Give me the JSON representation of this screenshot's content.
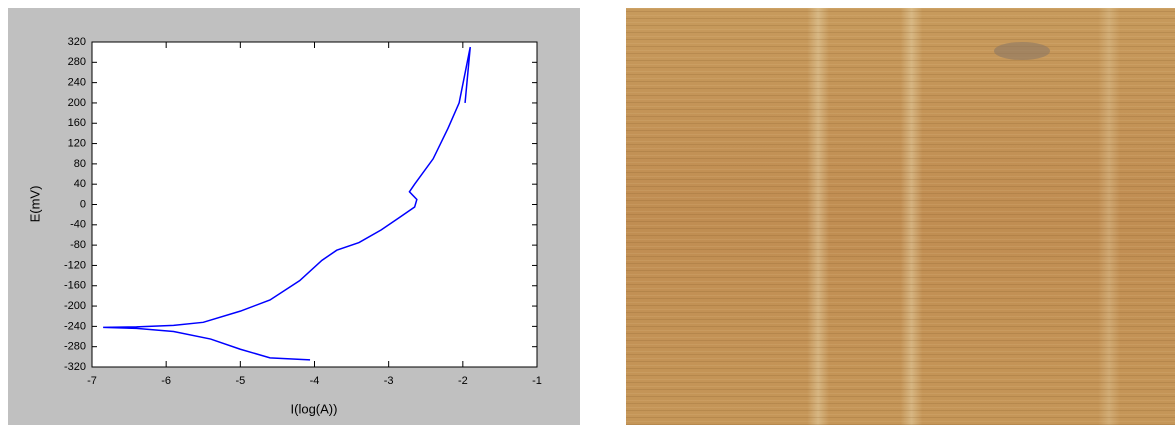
{
  "chart_data": {
    "type": "line",
    "xlabel": "I(log(A))",
    "ylabel": "E(mV)",
    "x": [
      -4.06,
      -4.6,
      -5.0,
      -5.4,
      -5.9,
      -6.4,
      -6.85,
      -6.4,
      -5.9,
      -5.5,
      -5.0,
      -4.6,
      -4.2,
      -3.9,
      -3.7,
      -3.4,
      -3.1,
      -2.85,
      -2.65,
      -2.62,
      -2.72,
      -2.65,
      -2.4,
      -2.2,
      -2.05,
      -1.9,
      -1.97
    ],
    "values": [
      -306,
      -302,
      -285,
      -265,
      -250,
      -244,
      -242,
      -241,
      -238,
      -232,
      -210,
      -188,
      -150,
      -110,
      -90,
      -75,
      -50,
      -25,
      -5,
      10,
      25,
      40,
      90,
      150,
      200,
      310,
      200
    ],
    "color": "#0000ff",
    "xlim": [
      -7,
      -1
    ],
    "xticks": [
      -7,
      -6,
      -5,
      -4,
      -3,
      -2,
      -1
    ],
    "ylim": [
      -320,
      320
    ],
    "yticks": [
      -320,
      -280,
      -240,
      -200,
      -160,
      -120,
      -80,
      -40,
      0,
      40,
      80,
      120,
      160,
      200,
      240,
      280,
      320
    ],
    "grid": false
  }
}
